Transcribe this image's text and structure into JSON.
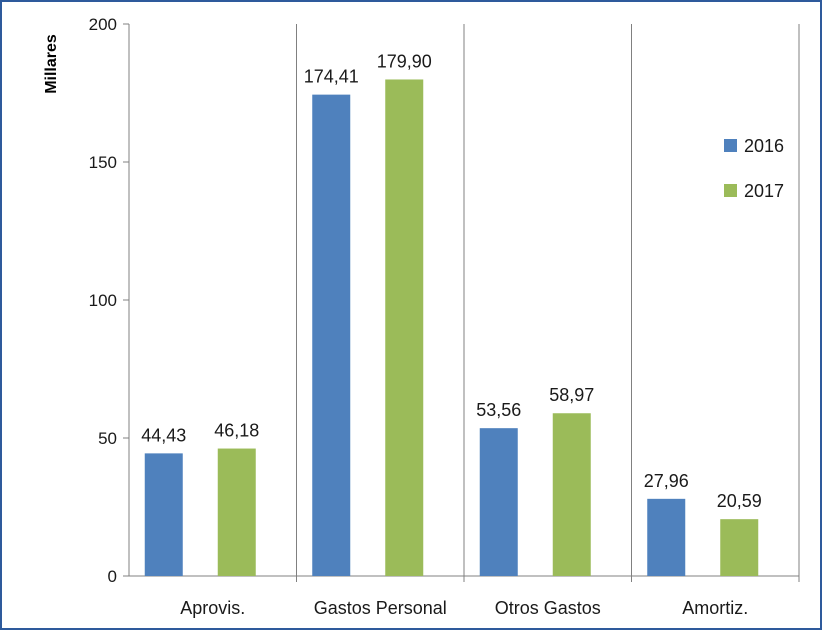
{
  "chart_data": {
    "type": "bar",
    "categories": [
      "Aprovis.",
      "Gastos Personal",
      "Otros Gastos",
      "Amortiz."
    ],
    "series": [
      {
        "name": "2016",
        "values": [
          44.43,
          174.41,
          53.56,
          27.96
        ],
        "labels": [
          "44,43",
          "174,41",
          "53,56",
          "27,96"
        ],
        "color": "#4f81bd"
      },
      {
        "name": "2017",
        "values": [
          46.18,
          179.9,
          58.97,
          20.59
        ],
        "labels": [
          "46,18",
          "179,90",
          "58,97",
          "20,59"
        ],
        "color": "#9bbb59"
      }
    ],
    "title": "",
    "xlabel": "",
    "ylabel": "Millares",
    "ylim": [
      0,
      200
    ],
    "yticks": [
      0,
      50,
      100,
      150,
      200
    ],
    "ytick_labels": [
      "0",
      "50",
      "100",
      "150",
      "200"
    ],
    "grid": "vertical category separators",
    "legend_position": "right"
  },
  "colors": {
    "frame_border": "#2e5a9c",
    "axis": "#808080",
    "text": "#1a1a1a"
  }
}
